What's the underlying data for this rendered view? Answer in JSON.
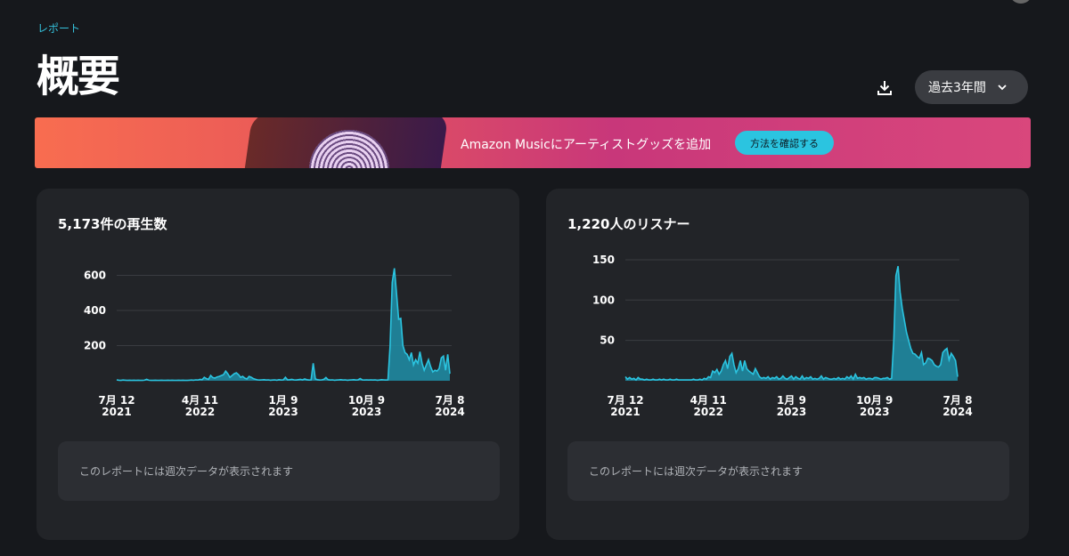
{
  "breadcrumb": "レポート",
  "page_title": "概要",
  "range_select": {
    "value": "過去3年間"
  },
  "banner": {
    "text": "Amazon Musicにアーティストグッズを追加",
    "button": "方法を確認する"
  },
  "chart_data": [
    {
      "type": "area",
      "title": "5,173件の再生数",
      "note": "このレポートには週次データが表示されます",
      "ylim": [
        0,
        640
      ],
      "yticks": [
        "200",
        "400",
        "600"
      ],
      "ytick_values": [
        200,
        400,
        600
      ],
      "xticks": [
        [
          "7月 12",
          "2021"
        ],
        [
          "4月 11",
          "2022"
        ],
        [
          "1月 9",
          "2023"
        ],
        [
          "10月 9",
          "2023"
        ],
        [
          "7月 8",
          "2024"
        ]
      ],
      "xtick_weeks": [
        0,
        39,
        78,
        117,
        156
      ],
      "values": [
        5,
        3,
        2,
        4,
        3,
        2,
        3,
        2,
        3,
        2,
        3,
        2,
        2,
        3,
        8,
        3,
        2,
        2,
        3,
        2,
        2,
        3,
        2,
        2,
        3,
        2,
        3,
        2,
        2,
        3,
        2,
        3,
        2,
        2,
        3,
        4,
        3,
        5,
        4,
        8,
        6,
        20,
        12,
        8,
        30,
        18,
        15,
        22,
        25,
        30,
        35,
        55,
        40,
        20,
        30,
        40,
        45,
        35,
        20,
        25,
        15,
        10,
        25,
        20,
        12,
        8,
        5,
        4,
        5,
        6,
        4,
        5,
        3,
        4,
        5,
        3,
        6,
        4,
        5,
        20,
        5,
        6,
        8,
        5,
        4,
        6,
        8,
        5,
        10,
        6,
        4,
        5,
        100,
        10,
        6,
        4,
        5,
        8,
        18,
        6,
        4,
        5,
        3,
        4,
        5,
        6,
        4,
        5,
        3,
        4,
        5,
        6,
        4,
        5,
        12,
        5,
        4,
        5,
        4,
        5,
        4,
        5,
        3,
        4,
        6,
        5,
        4,
        5,
        200,
        560,
        640,
        500,
        350,
        355,
        200,
        160,
        150,
        120,
        160,
        90,
        120,
        100,
        165,
        100,
        60,
        90,
        120,
        80,
        50,
        60,
        55,
        70,
        130,
        140,
        60,
        150,
        40
      ]
    },
    {
      "type": "area",
      "title": "1,220人のリスナー",
      "note": "このレポートには週次データが表示されます",
      "ylim": [
        0,
        150
      ],
      "yticks": [
        "50",
        "100",
        "150"
      ],
      "ytick_values": [
        50,
        100,
        150
      ],
      "xticks": [
        [
          "7月 12",
          "2021"
        ],
        [
          "4月 11",
          "2022"
        ],
        [
          "1月 9",
          "2023"
        ],
        [
          "10月 9",
          "2023"
        ],
        [
          "7月 8",
          "2024"
        ]
      ],
      "xtick_weeks": [
        0,
        39,
        78,
        117,
        156
      ],
      "values": [
        5,
        2,
        4,
        2,
        3,
        1,
        4,
        2,
        2,
        1,
        2,
        1,
        1,
        2,
        1,
        1,
        2,
        1,
        2,
        1,
        1,
        2,
        1,
        1,
        2,
        1,
        1,
        1,
        1,
        1,
        1,
        1,
        2,
        1,
        1,
        2,
        1,
        3,
        2,
        5,
        4,
        12,
        10,
        14,
        8,
        12,
        20,
        25,
        15,
        30,
        34,
        20,
        10,
        15,
        25,
        12,
        25,
        15,
        12,
        10,
        8,
        15,
        10,
        5,
        3,
        4,
        3,
        5,
        2,
        4,
        3,
        5,
        2,
        3,
        6,
        3,
        2,
        4,
        6,
        2,
        5,
        3,
        2,
        6,
        2,
        4,
        3,
        5,
        2,
        3,
        2,
        3,
        6,
        2,
        4,
        3,
        2,
        2,
        3,
        2,
        4,
        2,
        3,
        2,
        5,
        3,
        6,
        2,
        8,
        3,
        4,
        3,
        4,
        2,
        3,
        3,
        2,
        4,
        4,
        3,
        2,
        3,
        3,
        4,
        2,
        3,
        50,
        130,
        142,
        110,
        90,
        75,
        60,
        50,
        40,
        34,
        33,
        30,
        28,
        35,
        20,
        22,
        28,
        27,
        25,
        20,
        18,
        17,
        20,
        35,
        38,
        40,
        26,
        34,
        30,
        25,
        5
      ]
    }
  ],
  "colors": {
    "accent": "#2bc4e0",
    "area": "#1f8fa8",
    "bg": "#16181c",
    "card": "#222428"
  }
}
